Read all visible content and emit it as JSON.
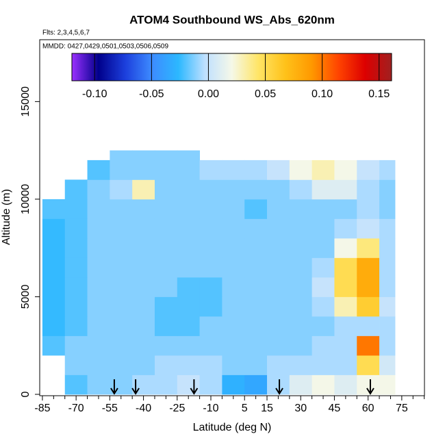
{
  "chart_data": {
    "type": "heatmap",
    "title": "ATOM4 Southbound WS_Abs_620nm",
    "subtitle": "Flts: 2,3,4,5,6,7",
    "annotation": "MMDD: 0427,0429,0501,0503,0506,0509",
    "xlabel": "Latitude (deg N)",
    "ylabel": "Altitude (m)",
    "xlim": [
      -86.2,
      85.1
    ],
    "ylim": [
      -70,
      18170
    ],
    "xticks": [
      -85,
      -70,
      -55,
      -40,
      -25,
      -10,
      5,
      15,
      30,
      45,
      60,
      75
    ],
    "xminorticks": [
      -80,
      -75,
      -65,
      -60,
      -50,
      -45,
      -35,
      -30,
      -20,
      -15,
      -5,
      0,
      10,
      20,
      25,
      35,
      40,
      50,
      55,
      65,
      70,
      80,
      85
    ],
    "yticks": [
      0,
      5000,
      10000,
      15000
    ],
    "x_edges": [
      -85,
      -75,
      -65,
      -55,
      -45,
      -35,
      -25,
      -15,
      -5,
      5,
      15,
      25,
      35,
      45,
      55,
      65,
      72
    ],
    "y_edges": [
      0,
      1000,
      2000,
      3000,
      4000,
      5000,
      6000,
      7000,
      8000,
      9000,
      10000,
      11000,
      12000,
      12500
    ],
    "z": [
      [
        null,
        -0.02,
        -0.012,
        -0.012,
        -0.006,
        -0.006,
        0.0,
        -0.006,
        -0.03,
        -0.035,
        -0.006,
        0.01,
        0.02,
        0.01,
        0.02,
        0.02
      ],
      [
        null,
        -0.012,
        -0.012,
        -0.012,
        -0.012,
        -0.006,
        -0.006,
        -0.006,
        -0.012,
        -0.012,
        -0.006,
        -0.006,
        -0.006,
        -0.006,
        0.05,
        0.005
      ],
      [
        -0.02,
        -0.012,
        -0.012,
        -0.012,
        -0.012,
        -0.012,
        -0.012,
        -0.012,
        -0.012,
        -0.012,
        -0.012,
        -0.012,
        -0.006,
        -0.006,
        0.1,
        -0.006
      ],
      [
        -0.025,
        -0.02,
        -0.012,
        -0.012,
        -0.012,
        -0.02,
        -0.02,
        -0.012,
        -0.012,
        -0.012,
        -0.012,
        -0.012,
        -0.012,
        -0.006,
        -0.006,
        -0.006
      ],
      [
        -0.025,
        -0.02,
        -0.012,
        -0.012,
        -0.012,
        -0.02,
        -0.02,
        -0.02,
        -0.012,
        -0.012,
        -0.012,
        -0.012,
        -0.006,
        0.03,
        0.06,
        0.0
      ],
      [
        -0.025,
        -0.02,
        -0.012,
        -0.012,
        -0.012,
        -0.012,
        -0.02,
        -0.02,
        -0.012,
        -0.012,
        -0.012,
        -0.012,
        0.0,
        0.05,
        0.08,
        -0.006
      ],
      [
        -0.025,
        -0.02,
        -0.012,
        -0.012,
        -0.012,
        -0.012,
        -0.012,
        -0.012,
        -0.012,
        -0.012,
        -0.012,
        -0.012,
        -0.006,
        0.05,
        0.08,
        -0.006
      ],
      [
        -0.025,
        -0.02,
        -0.012,
        -0.012,
        -0.012,
        -0.012,
        -0.012,
        -0.012,
        -0.012,
        -0.012,
        -0.012,
        -0.012,
        -0.012,
        0.02,
        0.04,
        -0.006
      ],
      [
        -0.025,
        -0.02,
        -0.012,
        -0.012,
        -0.012,
        -0.012,
        -0.012,
        -0.012,
        -0.012,
        -0.012,
        -0.012,
        -0.012,
        -0.012,
        -0.006,
        0.0,
        -0.006
      ],
      [
        -0.02,
        -0.02,
        -0.012,
        -0.012,
        -0.012,
        -0.012,
        -0.012,
        -0.012,
        -0.012,
        -0.02,
        -0.012,
        -0.012,
        -0.012,
        -0.012,
        -0.006,
        -0.012
      ],
      [
        null,
        -0.02,
        -0.012,
        -0.006,
        0.03,
        -0.012,
        -0.012,
        -0.012,
        -0.012,
        -0.012,
        -0.012,
        -0.006,
        0.01,
        0.01,
        -0.006,
        -0.012
      ],
      [
        null,
        null,
        -0.02,
        -0.012,
        -0.012,
        -0.012,
        -0.012,
        -0.006,
        -0.006,
        -0.006,
        0.0,
        0.02,
        0.03,
        0.02,
        0.0,
        -0.006
      ],
      [
        null,
        null,
        null,
        -0.012,
        -0.012,
        -0.012,
        -0.012,
        null,
        null,
        null,
        null,
        null,
        null,
        null,
        null,
        null
      ]
    ],
    "colorlim": [
      -0.12,
      0.161
    ],
    "colorticks": [
      {
        "value": -0.1,
        "label": "-0.10"
      },
      {
        "value": -0.05,
        "label": "-0.05"
      },
      {
        "value": 0,
        "label": "0.00"
      },
      {
        "value": 0.05,
        "label": "0.05"
      },
      {
        "value": 0.1,
        "label": "0.10"
      },
      0.15
    ],
    "colorscale": [
      "#9b30ff",
      "#00008b",
      "#1c3fdc",
      "#3d8bff",
      "#2cb8ff",
      "#bfe0ff",
      "#f5f8e8",
      "#ffe566",
      "#ffc21a",
      "#ff9900",
      "#ff4400",
      "#dd0000",
      "#a02020"
    ],
    "arrows": [
      -53,
      -43.5,
      -17.5,
      20.5,
      61
    ]
  }
}
